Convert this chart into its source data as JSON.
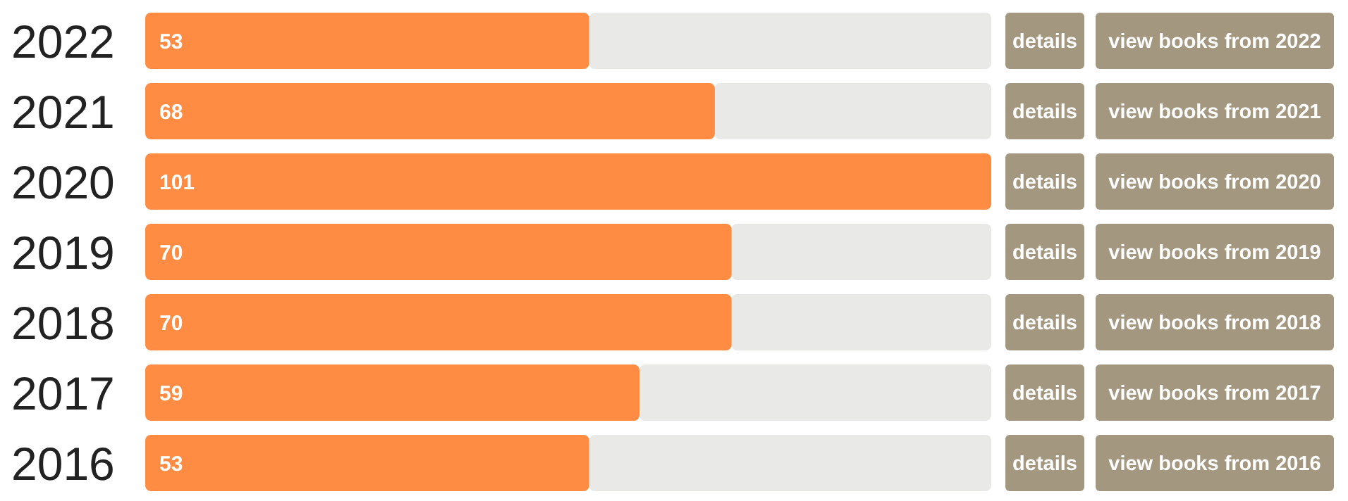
{
  "chart_data": {
    "type": "bar",
    "orientation": "horizontal",
    "categories": [
      "2022",
      "2021",
      "2020",
      "2019",
      "2018",
      "2017",
      "2016"
    ],
    "values": [
      53,
      68,
      101,
      70,
      70,
      59,
      53
    ],
    "color": "#ff8c42",
    "data_labels": true,
    "annotations": [
      "details",
      "view books from 2022",
      "details",
      "view books from 2021",
      "details",
      "view books from 2020",
      "details",
      "view books from 2019",
      "details",
      "view books from 2018",
      "details",
      "view books from 2017",
      "details",
      "view books from 2016"
    ]
  }
}
